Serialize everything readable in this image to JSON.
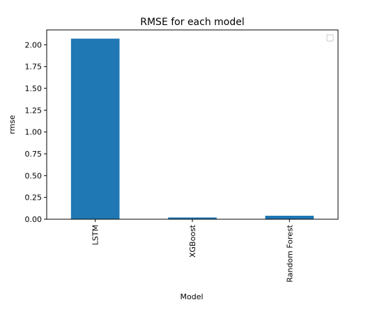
{
  "chart_data": {
    "type": "bar",
    "title": "RMSE for each model",
    "xlabel": "Model",
    "ylabel": "rmse",
    "categories": [
      "LSTM",
      "XGBoost",
      "Random Forest"
    ],
    "values": [
      2.07,
      0.02,
      0.04
    ],
    "ylim": [
      0,
      2.17
    ],
    "yticks": [
      0.0,
      0.25,
      0.5,
      0.75,
      1.0,
      1.25,
      1.5,
      1.75,
      2.0
    ],
    "ytick_labels": [
      "0.00",
      "0.25",
      "0.50",
      "0.75",
      "1.00",
      "1.25",
      "1.50",
      "1.75",
      "2.00"
    ],
    "grid": false,
    "legend": "top-right (empty)",
    "bar_color": "#1f77b4",
    "xtick_rotation": "vertical"
  }
}
